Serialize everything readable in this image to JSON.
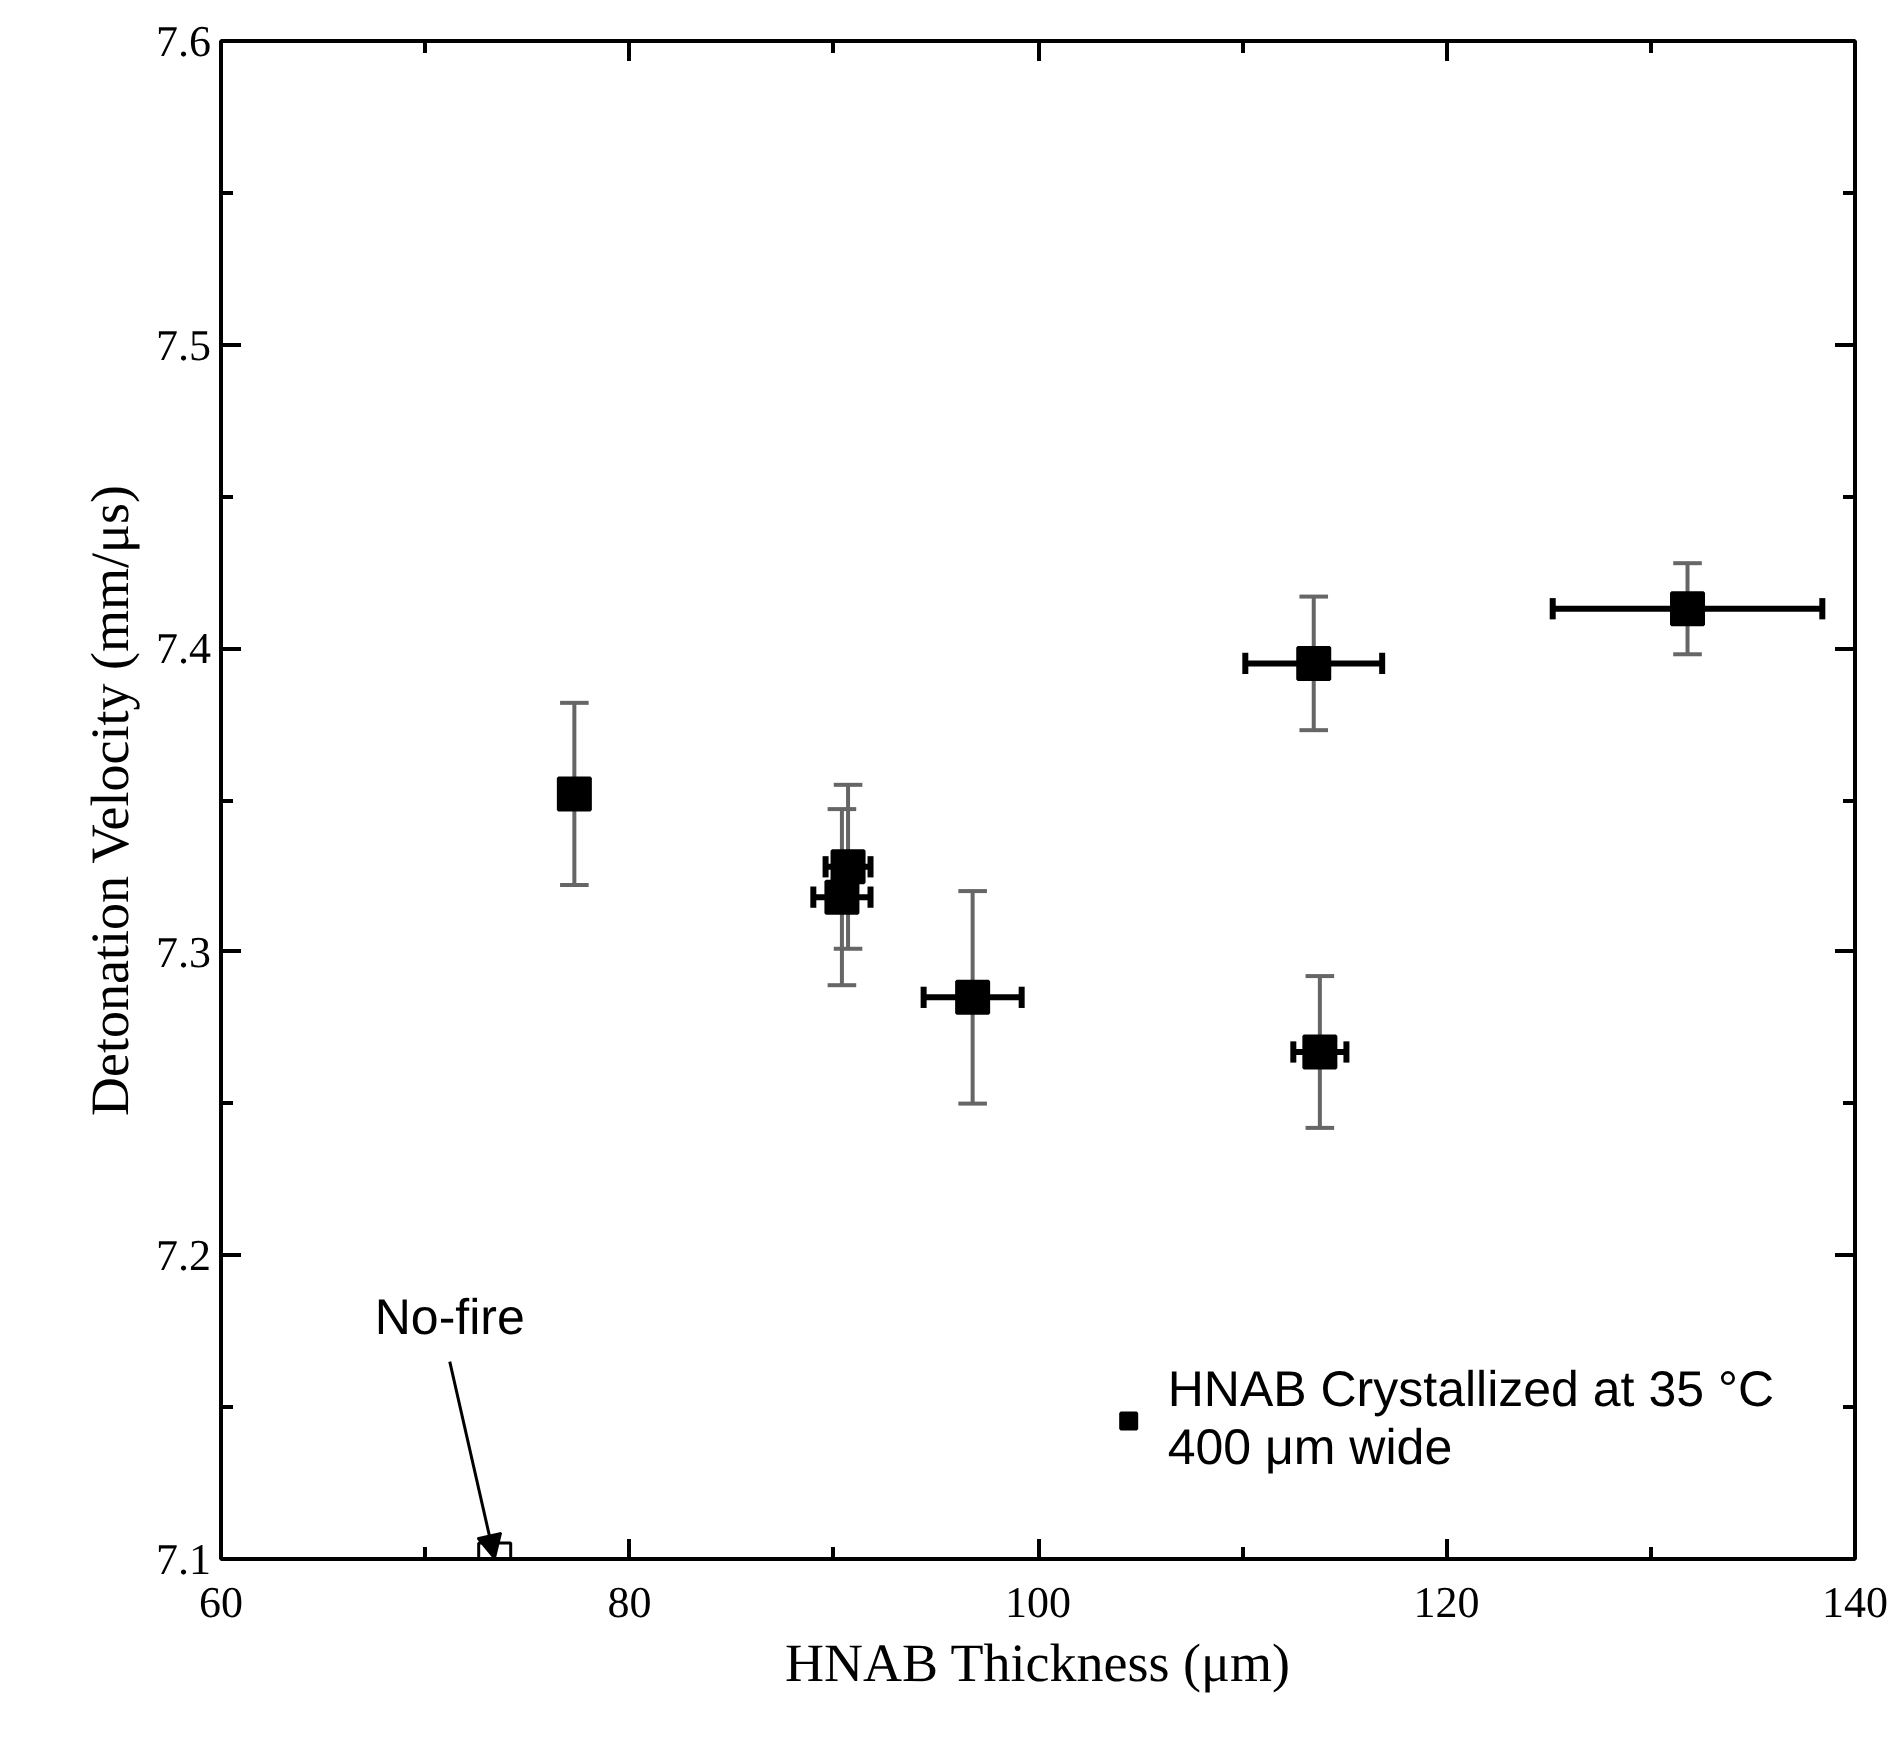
{
  "chart_data": {
    "type": "scatter",
    "xlabel": "HNAB Thickness (μm)",
    "ylabel": "Detonation Velocity (mm/μs)",
    "xlim": [
      60,
      140
    ],
    "xticks": [
      60,
      80,
      100,
      120,
      140
    ],
    "ylim": [
      7.1,
      7.6
    ],
    "yticks": [
      7.1,
      7.2,
      7.3,
      7.4,
      7.5,
      7.6
    ],
    "marker": "square",
    "grid": false,
    "legend": "bottom right",
    "series": [
      {
        "name": "HNAB Crystallized at 35 °C\n400 μm wide",
        "color": "#000000",
        "x": [
          77.3,
          90.4,
          90.7,
          96.8,
          113.5,
          131.8,
          113.8
        ],
        "values": [
          7.352,
          7.318,
          7.328,
          7.285,
          7.395,
          7.413,
          7.267
        ],
        "errors": [
          0.03,
          0.029,
          0.027,
          0.035,
          0.022,
          0.015,
          0.025
        ],
        "xerrors": [
          null,
          1.4,
          1.1,
          2.4,
          3.35,
          6.6,
          1.3
        ]
      },
      {
        "color": "#ffffff",
        "x": [
          73.4
        ],
        "values": [
          7.1
        ]
      }
    ],
    "annotations": [
      {
        "text": "No-fire",
        "x": 73.4,
        "y": 7.1
      }
    ]
  }
}
